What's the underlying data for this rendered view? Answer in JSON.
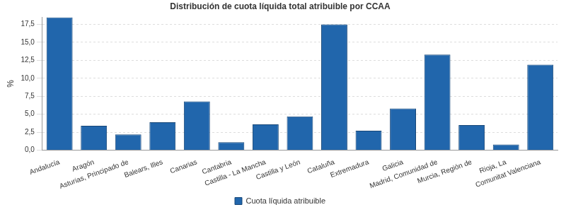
{
  "chart_data": {
    "type": "bar",
    "title": "Distribución de cuota líquida total atribuible por CCAA",
    "y_label": "%",
    "categories": [
      "Andalucía",
      "Aragón",
      "Asturias, Principado de",
      "Balears, Illes",
      "Canarias",
      "Cantabria",
      "Castilla - La Mancha",
      "Castilla y León",
      "Cataluña",
      "Extremadura",
      "Galicia",
      "Madrid, Comunidad de",
      "Murcia, Región de",
      "Rioja, La",
      "Comunitat Valenciana"
    ],
    "series": [
      {
        "name": "Cuota líquida atribuible",
        "color": "#2166ac",
        "values": [
          18.5,
          3.4,
          2.2,
          3.9,
          6.8,
          1.1,
          3.6,
          4.7,
          17.5,
          2.7,
          5.8,
          13.3,
          3.5,
          0.8,
          11.9
        ]
      }
    ],
    "ylim": [
      0,
      18.5
    ],
    "yticks": [
      {
        "value": 0,
        "label": "0,0"
      },
      {
        "value": 2.5,
        "label": "2,5"
      },
      {
        "value": 5,
        "label": "5,0"
      },
      {
        "value": 7.5,
        "label": "7,5"
      },
      {
        "value": 10,
        "label": "10,0"
      },
      {
        "value": 12.5,
        "label": "12,5"
      },
      {
        "value": 15,
        "label": "15,0"
      },
      {
        "value": 17.5,
        "label": "17,5"
      }
    ],
    "grid": true,
    "legend": "bottom"
  }
}
